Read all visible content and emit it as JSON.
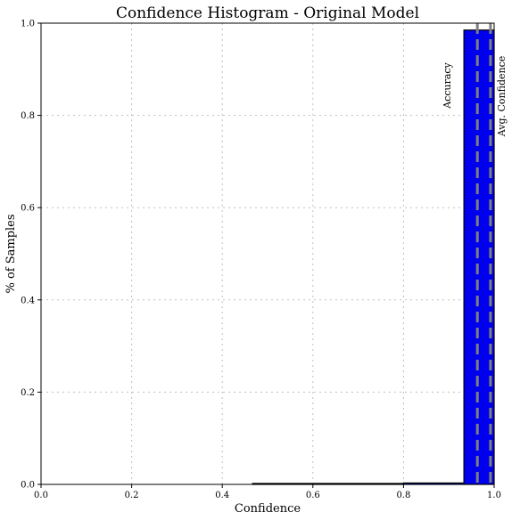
{
  "chart_data": {
    "type": "bar",
    "title": "Confidence Histogram - Original Model",
    "xlabel": "Confidence",
    "ylabel": "% of Samples",
    "xlim": [
      0,
      1
    ],
    "ylim": [
      0,
      1
    ],
    "x_ticks": [
      "0.0",
      "0.2",
      "0.4",
      "0.6",
      "0.8",
      "1.0"
    ],
    "y_ticks": [
      "0.0",
      "0.2",
      "0.4",
      "0.6",
      "0.8",
      "1.0"
    ],
    "grid": true,
    "bins": [
      {
        "start": 0.4667,
        "end": 0.8,
        "value": 0.002
      },
      {
        "start": 0.8,
        "end": 0.9333,
        "value": 0.003
      },
      {
        "start": 0.9333,
        "end": 1.0,
        "value": 0.985
      }
    ],
    "vertical_lines": [
      {
        "label": "Accuracy",
        "x": 0.963
      },
      {
        "label": "Avg. Confidence",
        "x": 0.992
      }
    ],
    "colors": {
      "bar": "#0000ee",
      "bar_edge": "#000000",
      "line": "#7f7f7f",
      "grid": "#bfbfbf"
    }
  }
}
